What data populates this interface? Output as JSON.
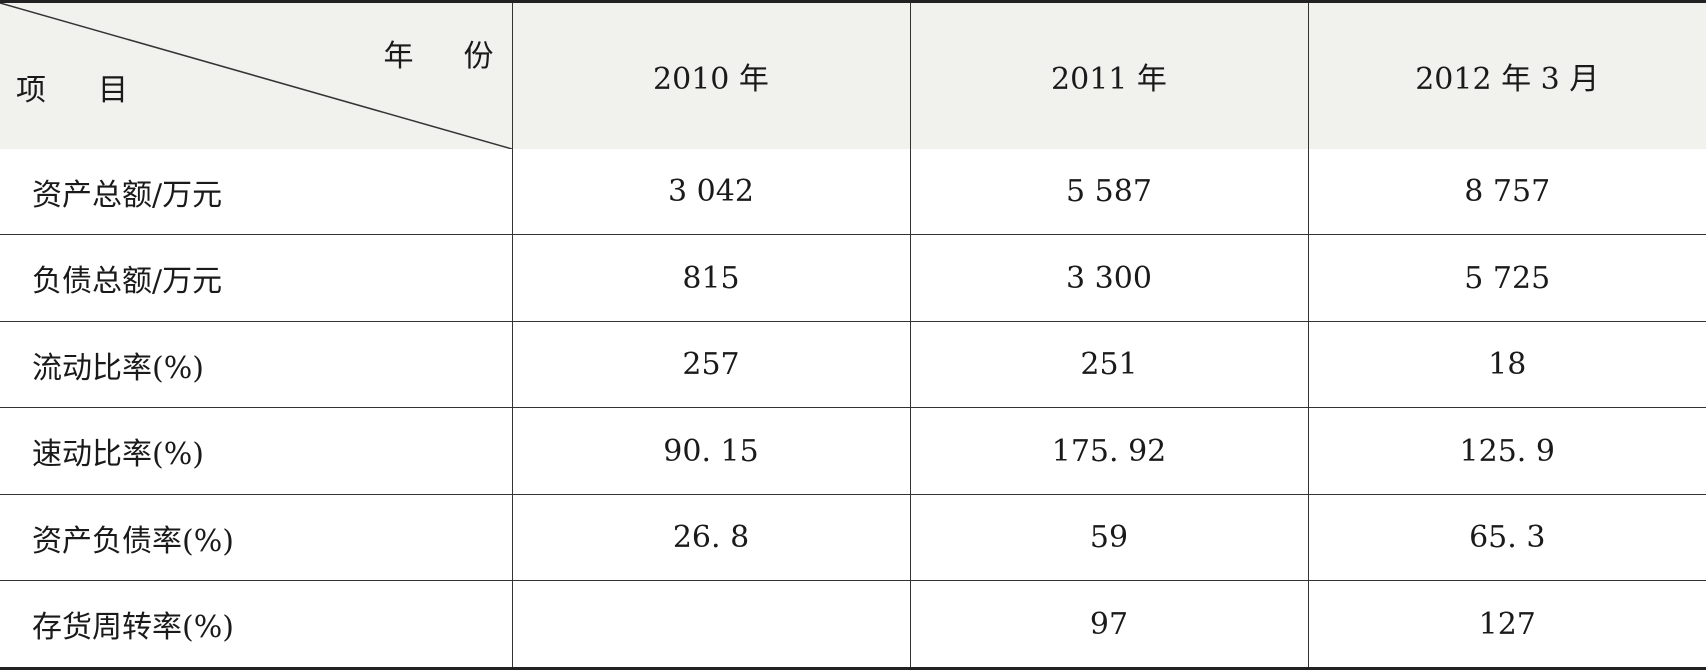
{
  "table": {
    "corner": {
      "top_label": "年份",
      "bottom_label": "项目"
    },
    "headers": [
      "2010 年",
      "2011 年",
      "2012 年 3 月"
    ],
    "rows": [
      {
        "label": "资产总额/万元",
        "values": [
          "3 042",
          "5 587",
          "8 757"
        ]
      },
      {
        "label": "负债总额/万元",
        "values": [
          "815",
          "3 300",
          "5 725"
        ]
      },
      {
        "label": "流动比率(%)",
        "values": [
          "257",
          "251",
          "18"
        ]
      },
      {
        "label": "速动比率(%)",
        "values": [
          "90. 15",
          "175. 92",
          "125. 9"
        ]
      },
      {
        "label": "资产负债率(%)",
        "values": [
          "26. 8",
          "59",
          "65. 3"
        ]
      },
      {
        "label": "存货周转率(%)",
        "values": [
          "",
          "97",
          "127"
        ]
      }
    ]
  }
}
